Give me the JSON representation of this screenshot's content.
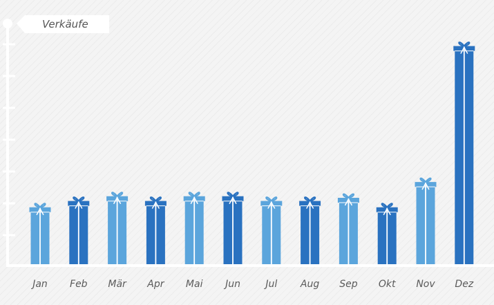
{
  "chart_data": {
    "type": "bar",
    "title": "Verkäufe",
    "categories": [
      "Jan",
      "Feb",
      "Mär",
      "Apr",
      "Mai",
      "Jun",
      "Jul",
      "Aug",
      "Sep",
      "Okt",
      "Nov",
      "Dez"
    ],
    "values": [
      18,
      20,
      21.5,
      20,
      21.5,
      21.5,
      20,
      20,
      21,
      18,
      26,
      69
    ],
    "ylim": [
      0,
      70
    ],
    "grid": false,
    "colors": {
      "light": "#5ba5dc",
      "dark": "#2a72c0",
      "axis": "#ffffff",
      "ribbon": "#ffffff"
    },
    "bar_styles": [
      "light",
      "dark",
      "light",
      "dark",
      "light",
      "dark",
      "light",
      "dark",
      "light",
      "dark",
      "light",
      "dark"
    ]
  }
}
